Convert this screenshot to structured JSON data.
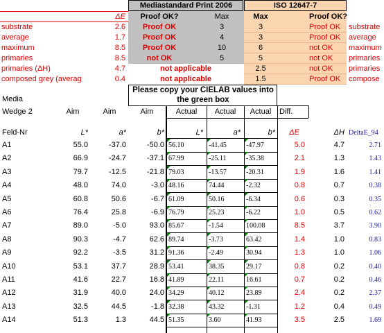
{
  "header": {
    "mediastandard": "Mediastandard Print 2006",
    "iso": "ISO 12647-7"
  },
  "summary": {
    "columns": [
      "ΔE",
      "Proof OK?",
      "Max",
      "Max",
      "Proof OK?"
    ],
    "rows": [
      [
        "substrate",
        "2.6",
        "Proof OK",
        "3",
        "3",
        "Proof OK",
        "substrate"
      ],
      [
        "average",
        "1.7",
        "Proof OK",
        "4",
        "3",
        "Proof OK",
        "average"
      ],
      [
        "maximum",
        "8.5",
        "Proof OK",
        "10",
        "6",
        "not OK",
        "maximum"
      ],
      [
        "primaries",
        "8.5",
        "not OK",
        "5",
        "5",
        "not OK",
        "primaries"
      ],
      [
        "primaries (ΔH)",
        "4.7",
        "not applicable",
        "2.5",
        "not OK",
        "primaries"
      ],
      [
        "composed grey (averag",
        "0.4",
        "not applicable",
        "1.5",
        "Proof OK",
        "compose"
      ]
    ]
  },
  "instruction": "Please copy your CIELAB values into the green box",
  "table": {
    "media": "Media",
    "header1": [
      "Wedge 2",
      "Aim",
      "Aim",
      "Aim",
      "Actual",
      "Actual",
      "Actual",
      "Diff."
    ],
    "header2": [
      "Feld-Nr",
      "L*",
      "a*",
      "b*",
      "L*",
      "a*",
      "b*",
      "ΔE",
      "ΔH",
      "DeltaE_94"
    ],
    "rows": [
      [
        "A1",
        "55.0",
        "-37.0",
        "-50.0",
        "56.10",
        "-41.45",
        "-47.97",
        "5.0",
        "4.7",
        "2.71"
      ],
      [
        "A2",
        "66.9",
        "-24.7",
        "-37.1",
        "67.99",
        "-25.11",
        "-35.38",
        "2.1",
        "1.3",
        "1.43"
      ],
      [
        "A3",
        "79.7",
        "-12.5",
        "-21.8",
        "79.03",
        "-13.57",
        "-20.31",
        "1.9",
        "1.6",
        "1.41"
      ],
      [
        "A4",
        "48.0",
        "74.0",
        "-3.0",
        "48.16",
        "74.44",
        "-2.32",
        "0.8",
        "0.7",
        "0.38"
      ],
      [
        "A5",
        "60.8",
        "50.6",
        "-6.7",
        "61.09",
        "50.16",
        "-6.34",
        "0.6",
        "0.3",
        "0.35"
      ],
      [
        "A6",
        "76.4",
        "25.8",
        "-6.9",
        "76.79",
        "25.23",
        "-6.22",
        "1.0",
        "0.5",
        "0.62"
      ],
      [
        "A7",
        "89.0",
        "-5.0",
        "93.0",
        "85.67",
        "-1.54",
        "100.08",
        "8.5",
        "3.7",
        "3.90"
      ],
      [
        "A8",
        "90.3",
        "-4.7",
        "62.6",
        "89.74",
        "-3.73",
        "63.42",
        "1.4",
        "1.0",
        "0.83"
      ],
      [
        "A9",
        "92.2",
        "-3.5",
        "31.2",
        "91.36",
        "-2.49",
        "30.94",
        "1.3",
        "1.0",
        "1.06"
      ],
      [
        "A10",
        "53.1",
        "37.7",
        "28.9",
        "53.41",
        "38.35",
        "29.17",
        "0.8",
        "0.2",
        "0.40"
      ],
      [
        "A11",
        "41.6",
        "22.7",
        "16.8",
        "41.89",
        "22.11",
        "16.61",
        "0.7",
        "0.2",
        "0.46"
      ],
      [
        "A12",
        "31.9",
        "40.0",
        "24.0",
        "34.29",
        "40.12",
        "23.89",
        "2.4",
        "0.2",
        "2.37"
      ],
      [
        "A13",
        "32.5",
        "44.5",
        "-1.8",
        "32.38",
        "43.32",
        "-1.31",
        "1.2",
        "0.4",
        "0.49"
      ],
      [
        "A14",
        "51.3",
        "1.3",
        "44.5",
        "51.35",
        "3.60",
        "41.93",
        "3.5",
        "2.5",
        "1.69"
      ]
    ]
  }
}
